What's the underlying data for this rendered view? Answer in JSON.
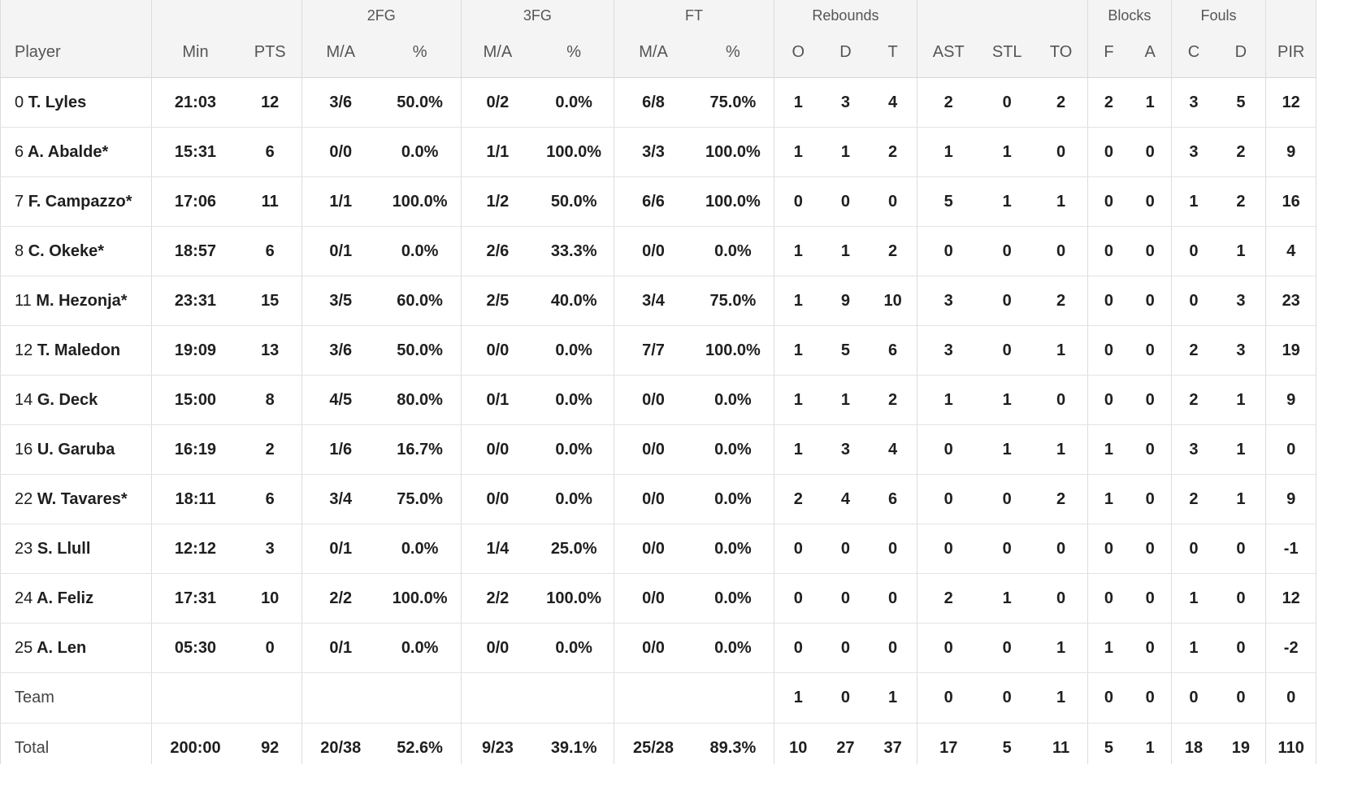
{
  "groups": {
    "fg2": "2FG",
    "fg3": "3FG",
    "ft": "FT",
    "rebounds": "Rebounds",
    "blocks": "Blocks",
    "fouls": "Fouls"
  },
  "columns": {
    "player": "Player",
    "min": "Min",
    "pts": "PTS",
    "fg2_ma": "M/A",
    "fg2_pct": "%",
    "fg3_ma": "M/A",
    "fg3_pct": "%",
    "ft_ma": "M/A",
    "ft_pct": "%",
    "reb_o": "O",
    "reb_d": "D",
    "reb_t": "T",
    "ast": "AST",
    "stl": "STL",
    "to": "TO",
    "blk_f": "F",
    "blk_a": "A",
    "foul_c": "C",
    "foul_d": "D",
    "pir": "PIR"
  },
  "players": [
    {
      "num": "0",
      "name": "T. Lyles",
      "min": "21:03",
      "pts": "12",
      "fg2_ma": "3/6",
      "fg2_pct": "50.0%",
      "fg3_ma": "0/2",
      "fg3_pct": "0.0%",
      "ft_ma": "6/8",
      "ft_pct": "75.0%",
      "reb_o": "1",
      "reb_d": "3",
      "reb_t": "4",
      "ast": "2",
      "stl": "0",
      "to": "2",
      "blk_f": "2",
      "blk_a": "1",
      "foul_c": "3",
      "foul_d": "5",
      "pir": "12"
    },
    {
      "num": "6",
      "name": "A. Abalde*",
      "min": "15:31",
      "pts": "6",
      "fg2_ma": "0/0",
      "fg2_pct": "0.0%",
      "fg3_ma": "1/1",
      "fg3_pct": "100.0%",
      "ft_ma": "3/3",
      "ft_pct": "100.0%",
      "reb_o": "1",
      "reb_d": "1",
      "reb_t": "2",
      "ast": "1",
      "stl": "1",
      "to": "0",
      "blk_f": "0",
      "blk_a": "0",
      "foul_c": "3",
      "foul_d": "2",
      "pir": "9"
    },
    {
      "num": "7",
      "name": "F. Campazzo*",
      "min": "17:06",
      "pts": "11",
      "fg2_ma": "1/1",
      "fg2_pct": "100.0%",
      "fg3_ma": "1/2",
      "fg3_pct": "50.0%",
      "ft_ma": "6/6",
      "ft_pct": "100.0%",
      "reb_o": "0",
      "reb_d": "0",
      "reb_t": "0",
      "ast": "5",
      "stl": "1",
      "to": "1",
      "blk_f": "0",
      "blk_a": "0",
      "foul_c": "1",
      "foul_d": "2",
      "pir": "16"
    },
    {
      "num": "8",
      "name": "C. Okeke*",
      "min": "18:57",
      "pts": "6",
      "fg2_ma": "0/1",
      "fg2_pct": "0.0%",
      "fg3_ma": "2/6",
      "fg3_pct": "33.3%",
      "ft_ma": "0/0",
      "ft_pct": "0.0%",
      "reb_o": "1",
      "reb_d": "1",
      "reb_t": "2",
      "ast": "0",
      "stl": "0",
      "to": "0",
      "blk_f": "0",
      "blk_a": "0",
      "foul_c": "0",
      "foul_d": "1",
      "pir": "4"
    },
    {
      "num": "11",
      "name": "M. Hezonja*",
      "min": "23:31",
      "pts": "15",
      "fg2_ma": "3/5",
      "fg2_pct": "60.0%",
      "fg3_ma": "2/5",
      "fg3_pct": "40.0%",
      "ft_ma": "3/4",
      "ft_pct": "75.0%",
      "reb_o": "1",
      "reb_d": "9",
      "reb_t": "10",
      "ast": "3",
      "stl": "0",
      "to": "2",
      "blk_f": "0",
      "blk_a": "0",
      "foul_c": "0",
      "foul_d": "3",
      "pir": "23"
    },
    {
      "num": "12",
      "name": "T. Maledon",
      "min": "19:09",
      "pts": "13",
      "fg2_ma": "3/6",
      "fg2_pct": "50.0%",
      "fg3_ma": "0/0",
      "fg3_pct": "0.0%",
      "ft_ma": "7/7",
      "ft_pct": "100.0%",
      "reb_o": "1",
      "reb_d": "5",
      "reb_t": "6",
      "ast": "3",
      "stl": "0",
      "to": "1",
      "blk_f": "0",
      "blk_a": "0",
      "foul_c": "2",
      "foul_d": "3",
      "pir": "19"
    },
    {
      "num": "14",
      "name": "G. Deck",
      "min": "15:00",
      "pts": "8",
      "fg2_ma": "4/5",
      "fg2_pct": "80.0%",
      "fg3_ma": "0/1",
      "fg3_pct": "0.0%",
      "ft_ma": "0/0",
      "ft_pct": "0.0%",
      "reb_o": "1",
      "reb_d": "1",
      "reb_t": "2",
      "ast": "1",
      "stl": "1",
      "to": "0",
      "blk_f": "0",
      "blk_a": "0",
      "foul_c": "2",
      "foul_d": "1",
      "pir": "9"
    },
    {
      "num": "16",
      "name": "U. Garuba",
      "min": "16:19",
      "pts": "2",
      "fg2_ma": "1/6",
      "fg2_pct": "16.7%",
      "fg3_ma": "0/0",
      "fg3_pct": "0.0%",
      "ft_ma": "0/0",
      "ft_pct": "0.0%",
      "reb_o": "1",
      "reb_d": "3",
      "reb_t": "4",
      "ast": "0",
      "stl": "1",
      "to": "1",
      "blk_f": "1",
      "blk_a": "0",
      "foul_c": "3",
      "foul_d": "1",
      "pir": "0"
    },
    {
      "num": "22",
      "name": "W. Tavares*",
      "min": "18:11",
      "pts": "6",
      "fg2_ma": "3/4",
      "fg2_pct": "75.0%",
      "fg3_ma": "0/0",
      "fg3_pct": "0.0%",
      "ft_ma": "0/0",
      "ft_pct": "0.0%",
      "reb_o": "2",
      "reb_d": "4",
      "reb_t": "6",
      "ast": "0",
      "stl": "0",
      "to": "2",
      "blk_f": "1",
      "blk_a": "0",
      "foul_c": "2",
      "foul_d": "1",
      "pir": "9"
    },
    {
      "num": "23",
      "name": "S. Llull",
      "min": "12:12",
      "pts": "3",
      "fg2_ma": "0/1",
      "fg2_pct": "0.0%",
      "fg3_ma": "1/4",
      "fg3_pct": "25.0%",
      "ft_ma": "0/0",
      "ft_pct": "0.0%",
      "reb_o": "0",
      "reb_d": "0",
      "reb_t": "0",
      "ast": "0",
      "stl": "0",
      "to": "0",
      "blk_f": "0",
      "blk_a": "0",
      "foul_c": "0",
      "foul_d": "0",
      "pir": "-1"
    },
    {
      "num": "24",
      "name": "A. Feliz",
      "min": "17:31",
      "pts": "10",
      "fg2_ma": "2/2",
      "fg2_pct": "100.0%",
      "fg3_ma": "2/2",
      "fg3_pct": "100.0%",
      "ft_ma": "0/0",
      "ft_pct": "0.0%",
      "reb_o": "0",
      "reb_d": "0",
      "reb_t": "0",
      "ast": "2",
      "stl": "1",
      "to": "0",
      "blk_f": "0",
      "blk_a": "0",
      "foul_c": "1",
      "foul_d": "0",
      "pir": "12"
    },
    {
      "num": "25",
      "name": "A. Len",
      "min": "05:30",
      "pts": "0",
      "fg2_ma": "0/1",
      "fg2_pct": "0.0%",
      "fg3_ma": "0/0",
      "fg3_pct": "0.0%",
      "ft_ma": "0/0",
      "ft_pct": "0.0%",
      "reb_o": "0",
      "reb_d": "0",
      "reb_t": "0",
      "ast": "0",
      "stl": "0",
      "to": "1",
      "blk_f": "1",
      "blk_a": "0",
      "foul_c": "1",
      "foul_d": "0",
      "pir": "-2"
    }
  ],
  "team": {
    "label": "Team",
    "reb_o": "1",
    "reb_d": "0",
    "reb_t": "1",
    "ast": "0",
    "stl": "0",
    "to": "1",
    "blk_f": "0",
    "blk_a": "0",
    "foul_c": "0",
    "foul_d": "0",
    "pir": "0"
  },
  "total": {
    "label": "Total",
    "min": "200:00",
    "pts": "92",
    "fg2_ma": "20/38",
    "fg2_pct": "52.6%",
    "fg3_ma": "9/23",
    "fg3_pct": "39.1%",
    "ft_ma": "25/28",
    "ft_pct": "89.3%",
    "reb_o": "10",
    "reb_d": "27",
    "reb_t": "37",
    "ast": "17",
    "stl": "5",
    "to": "11",
    "blk_f": "5",
    "blk_a": "1",
    "foul_c": "18",
    "foul_d": "19",
    "pir": "110"
  }
}
